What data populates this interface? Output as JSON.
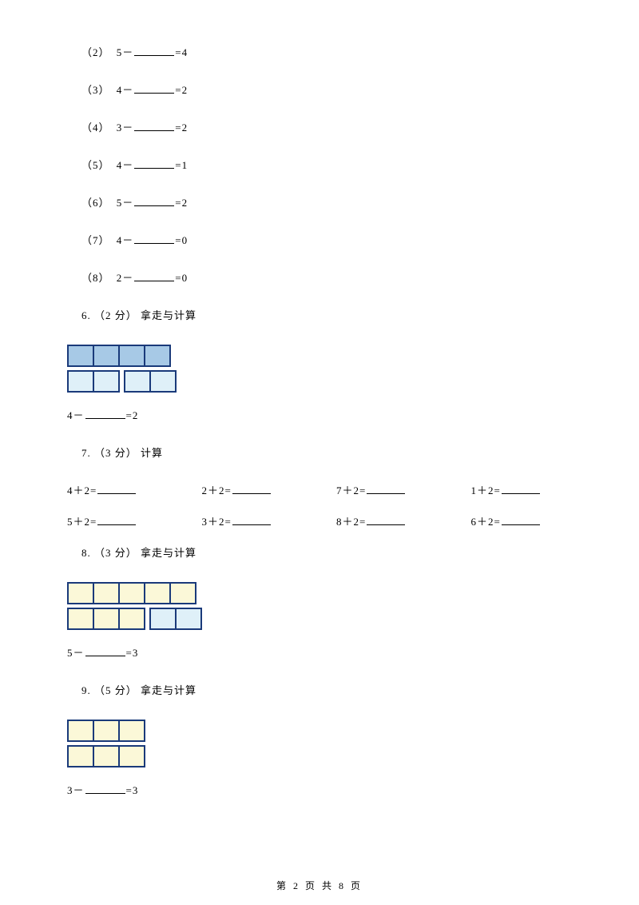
{
  "items": {
    "i2": {
      "label": "（2）",
      "a": "5",
      "op": "－",
      "r": "=4"
    },
    "i3": {
      "label": "（3）",
      "a": "4",
      "op": "－",
      "r": "=2"
    },
    "i4": {
      "label": "（4）",
      "a": "3",
      "op": "－",
      "r": "=2"
    },
    "i5": {
      "label": "（5）",
      "a": "4",
      "op": "－",
      "r": "=1"
    },
    "i6": {
      "label": "（6）",
      "a": "5",
      "op": "－",
      "r": "=2"
    },
    "i7": {
      "label": "（7）",
      "a": "4",
      "op": "－",
      "r": "=0"
    },
    "i8": {
      "label": "（8）",
      "a": "2",
      "op": "－",
      "r": "=0"
    }
  },
  "q6": {
    "heading": "6. （2 分） 拿走与计算",
    "expr_a": "4",
    "expr_op": "－",
    "expr_r": "=2"
  },
  "q6_fig": {
    "top_cells": 4,
    "top_fill": "#a7c9e6",
    "bottom_left_cells": 2,
    "bottom_right_cells": 2,
    "bottom_fill": "#dff0f8",
    "border_color": "#1a3a7a"
  },
  "q7": {
    "heading": "7. （3 分） 计算"
  },
  "q7_grid": [
    [
      {
        "a": "4",
        "op": "＋",
        "b": "2="
      },
      {
        "a": "2",
        "op": "＋",
        "b": "2="
      },
      {
        "a": "7",
        "op": "＋",
        "b": "2="
      },
      {
        "a": "1",
        "op": "＋",
        "b": "2="
      }
    ],
    [
      {
        "a": "5",
        "op": "＋",
        "b": "2="
      },
      {
        "a": "3",
        "op": "＋",
        "b": "2="
      },
      {
        "a": "8",
        "op": "＋",
        "b": "2="
      },
      {
        "a": "6",
        "op": "＋",
        "b": "2="
      }
    ]
  ],
  "q8": {
    "heading": "8. （3 分） 拿走与计算",
    "expr_a": "5",
    "expr_op": "－",
    "expr_r": "=3"
  },
  "q8_fig": {
    "top_cells": 5,
    "top_fill": "#fbf8d8",
    "bottom_left_cells": 3,
    "bottom_left_fill": "#fbf8d8",
    "bottom_right_cells": 2,
    "bottom_right_fill": "#dff0f8",
    "border_color": "#1a3a7a"
  },
  "q9": {
    "heading": "9. （5 分） 拿走与计算",
    "expr_a": "3",
    "expr_op": "－",
    "expr_r": "=3"
  },
  "q9_fig": {
    "top_cells": 3,
    "top_fill": "#fbf8d8",
    "bottom_cells": 3,
    "bottom_fill": "#fbf8d8",
    "border_color": "#1a3a7a"
  },
  "footer": {
    "text": "第 2 页 共 8 页"
  }
}
